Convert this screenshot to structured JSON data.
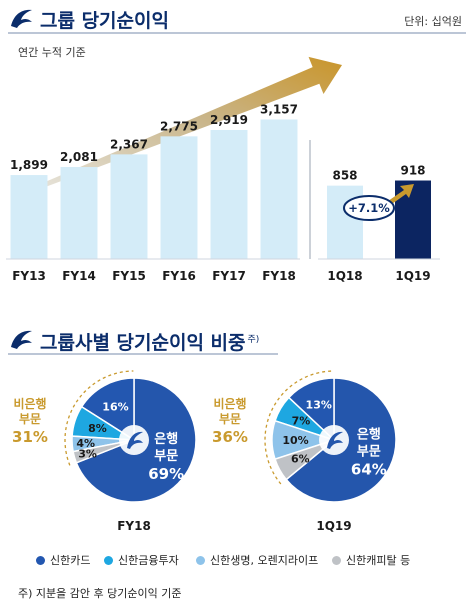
{
  "section1": {
    "title": "그룹 당기순이익",
    "unit": "단위: 십억원",
    "subtitle": "연간 누적 기준"
  },
  "section2": {
    "title": "그룹사별 당기순이익 비중",
    "title_note": "주)",
    "footnote": "주) 지분을 감안 후 당기순이익 기준"
  },
  "legend": [
    {
      "label": "신한카드",
      "color": "#2357b0"
    },
    {
      "label": "신한금융투자",
      "color": "#1ea7e1"
    },
    {
      "label": "신한생명, 오렌지라이프",
      "color": "#8ec3ea"
    },
    {
      "label": "신한캐피탈 등",
      "color": "#bfc2c6"
    }
  ],
  "colors": {
    "bar_light": "#d4ecf8",
    "bar_dark": "#0c2561",
    "bank_blue": "#2456ac",
    "gold": "#c99a2e",
    "title_navy": "#0b2d6b"
  },
  "chart_data": [
    {
      "type": "bar",
      "categories": [
        "FY13",
        "FY14",
        "FY15",
        "FY16",
        "FY17",
        "FY18"
      ],
      "values": [
        1899,
        2081,
        2367,
        2775,
        2919,
        3157
      ],
      "value_labels": [
        "1,899",
        "2,081",
        "2,367",
        "2,775",
        "2,919",
        "3,157"
      ],
      "title": "그룹 당기순이익",
      "ylabel": "",
      "ylim": [
        0,
        3200
      ]
    },
    {
      "type": "bar",
      "categories": [
        "1Q18",
        "1Q19"
      ],
      "values": [
        858,
        918
      ],
      "value_labels": [
        "858",
        "918"
      ],
      "growth_label": "+7.1%",
      "highlight": "1Q19",
      "ylim": [
        0,
        1000
      ]
    },
    {
      "type": "pie",
      "label": "FY18",
      "bank": {
        "label": [
          "은행",
          "부문"
        ],
        "value": 69,
        "text": "69%"
      },
      "nonbank": {
        "label": [
          "비은행",
          "부문"
        ],
        "value": 31,
        "text": "31%"
      },
      "slices": [
        {
          "name": "신한카드",
          "value": 16,
          "text": "16%"
        },
        {
          "name": "신한금융투자",
          "value": 8,
          "text": "8%"
        },
        {
          "name": "신한생명, 오렌지라이프",
          "value": 4,
          "text": "4%"
        },
        {
          "name": "신한캐피탈 등",
          "value": 3,
          "text": "3%"
        }
      ]
    },
    {
      "type": "pie",
      "label": "1Q19",
      "bank": {
        "label": [
          "은행",
          "부문"
        ],
        "value": 64,
        "text": "64%"
      },
      "nonbank": {
        "label": [
          "비은행",
          "부문"
        ],
        "value": 36,
        "text": "36%"
      },
      "slices": [
        {
          "name": "신한카드",
          "value": 13,
          "text": "13%"
        },
        {
          "name": "신한금융투자",
          "value": 7,
          "text": "7%"
        },
        {
          "name": "신한생명, 오렌지라이프",
          "value": 10,
          "text": "10%"
        },
        {
          "name": "신한캐피탈 등",
          "value": 6,
          "text": "6%"
        }
      ]
    }
  ]
}
